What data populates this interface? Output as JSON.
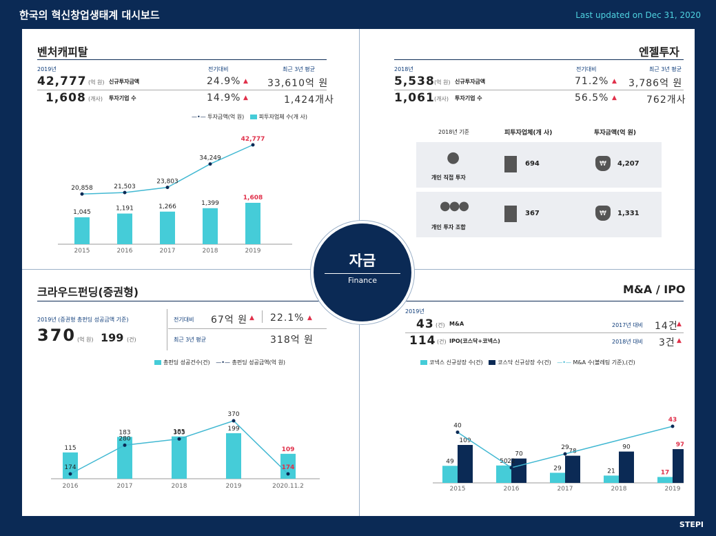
{
  "header": {
    "title": "한국의 혁신창업생태계 대시보드",
    "updated": "Last updated on Dec 31, 2020"
  },
  "center": {
    "title": "자금",
    "subtitle": "Finance"
  },
  "footer": {
    "logo": "STEPI"
  },
  "vc": {
    "title": "벤처캐피탈",
    "year": "2019년",
    "col_yoy": "전기대비",
    "col_avg": "최근 3년 평균",
    "row1": {
      "value": "42,777",
      "unit": "(억 원)",
      "label": "신규투자금액",
      "yoy": "24.9%",
      "avg": "33,610억 원"
    },
    "row2": {
      "value": "1,608",
      "unit": "(개사)",
      "label": "투자기업 수",
      "yoy": "14.9%",
      "avg": "1,424개사"
    },
    "legend_line": "투자금액(억 원)",
    "legend_bar": "피투자업체 수(개 사)"
  },
  "angel": {
    "title": "엔젤투자",
    "year": "2018년",
    "col_yoy": "전기대비",
    "col_avg": "최근 3년 평균",
    "row1": {
      "value": "5,538",
      "unit": "(억 원)",
      "label": "신규투자금액",
      "yoy": "71.2%",
      "avg": "3,786억 원"
    },
    "row2": {
      "value": "1,061",
      "unit": "(개사)",
      "label": "투자기업 수",
      "yoy": "56.5%",
      "avg": "762개사"
    },
    "table": {
      "base": "2018년 기준",
      "col1": "피투자업체(개 사)",
      "col2": "투자금액(억 원)",
      "rows": [
        {
          "label": "개인 직접 투자",
          "companies": "694",
          "amount": "4,207"
        },
        {
          "label": "개인 투자 조합",
          "companies": "367",
          "amount": "1,331"
        }
      ]
    }
  },
  "crowd": {
    "title": "크라우드펀딩(증권형)",
    "basis": "2019년 (증권형 총펀딩 성공금액 기준)",
    "amount": "370",
    "amount_unit": "(억 원)",
    "count": "199",
    "count_unit": "(건)",
    "yoy_label": "전기대비",
    "yoy_amount": "67억 원",
    "yoy_pct": "22.1%",
    "avg_label": "최근 3년 평균",
    "avg_value": "318억 원",
    "legend_bar": "총펀딩 성공건수(건)",
    "legend_line": "총펀딩 성공금액(억 원)"
  },
  "mna": {
    "title": "M&A / IPO",
    "year": "2019년",
    "row1": {
      "value": "43",
      "unit": "(건)",
      "label": "M&A",
      "cmp_label": "2017년 대비",
      "cmp": "14건"
    },
    "row2": {
      "value": "114",
      "unit": "(건)",
      "label": "IPO(코스닥+코넥스)",
      "cmp_label": "2018년 대비",
      "cmp": "3건"
    },
    "legend_a": "코넥스 신규상장 수(건)",
    "legend_b": "코스닥 신규상장 수(건)",
    "legend_c": "M&A 수(볼레팅 기준),(건)"
  },
  "colors": {
    "navy": "#0b2a55",
    "cyan": "#45ccd8",
    "red": "#e0304a",
    "line": "#41b8d2"
  },
  "chart_data": [
    {
      "type": "bar",
      "title": "벤처캐피탈",
      "categories": [
        "2015",
        "2016",
        "2017",
        "2018",
        "2019"
      ],
      "series": [
        {
          "name": "투자금액(억 원)",
          "kind": "line",
          "values": [
            20858,
            21503,
            23803,
            34249,
            42777
          ],
          "labels": [
            "20,858",
            "21,503",
            "23,803",
            "34,249",
            "42,777"
          ]
        },
        {
          "name": "피투자업체 수(개 사)",
          "kind": "bar",
          "values": [
            1045,
            1191,
            1266,
            1399,
            1608
          ],
          "labels": [
            "1,045",
            "1,191",
            "1,266",
            "1,399",
            "1,608"
          ]
        }
      ]
    },
    {
      "type": "bar",
      "title": "크라우드펀딩(증권형)",
      "categories": [
        "2016",
        "2017",
        "2018",
        "2019",
        "2020.11.2"
      ],
      "series": [
        {
          "name": "총펀딩 성공건수(건)",
          "kind": "bar",
          "values": [
            115,
            183,
            185,
            199,
            109
          ]
        },
        {
          "name": "총펀딩 성공금액(억 원)",
          "kind": "line",
          "values": [
            174,
            280,
            303,
            370,
            174
          ]
        }
      ]
    },
    {
      "type": "bar",
      "title": "M&A / IPO",
      "categories": [
        "2015",
        "2016",
        "2017",
        "2018",
        "2019"
      ],
      "series": [
        {
          "name": "코넥스 신규상장 수(건)",
          "kind": "bar",
          "values": [
            49,
            50,
            29,
            21,
            17
          ]
        },
        {
          "name": "코스닥 신규상장 수(건)",
          "kind": "bar",
          "values": [
            109,
            70,
            78,
            90,
            97
          ]
        },
        {
          "name": "M&A 수(볼레팅 기준),(건)",
          "kind": "line",
          "values": [
            40,
            22,
            29,
            null,
            43
          ]
        }
      ]
    }
  ]
}
